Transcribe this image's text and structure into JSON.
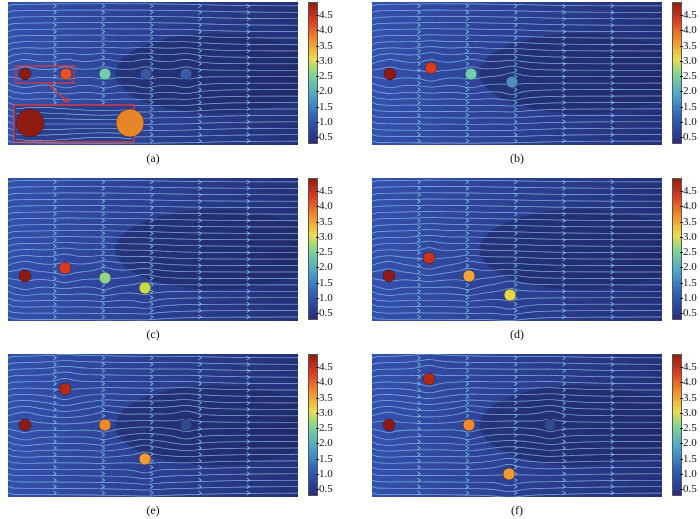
{
  "colorbar": {
    "ticks": [
      "4.5",
      "4.0",
      "3.5",
      "3.0",
      "2.5",
      "2.0",
      "1.5",
      "1.0",
      "0.5"
    ],
    "colors": [
      "#2b2a7a",
      "#2f5fb8",
      "#48a6c9",
      "#7ed29b",
      "#e8e04a",
      "#f28a2a",
      "#d93a1e",
      "#8f1b10"
    ]
  },
  "panels": [
    {
      "label": "(a)"
    },
    {
      "label": "(b)"
    },
    {
      "label": "(c)"
    },
    {
      "label": "(d)"
    },
    {
      "label": "(e)"
    },
    {
      "label": "(f)"
    }
  ]
}
